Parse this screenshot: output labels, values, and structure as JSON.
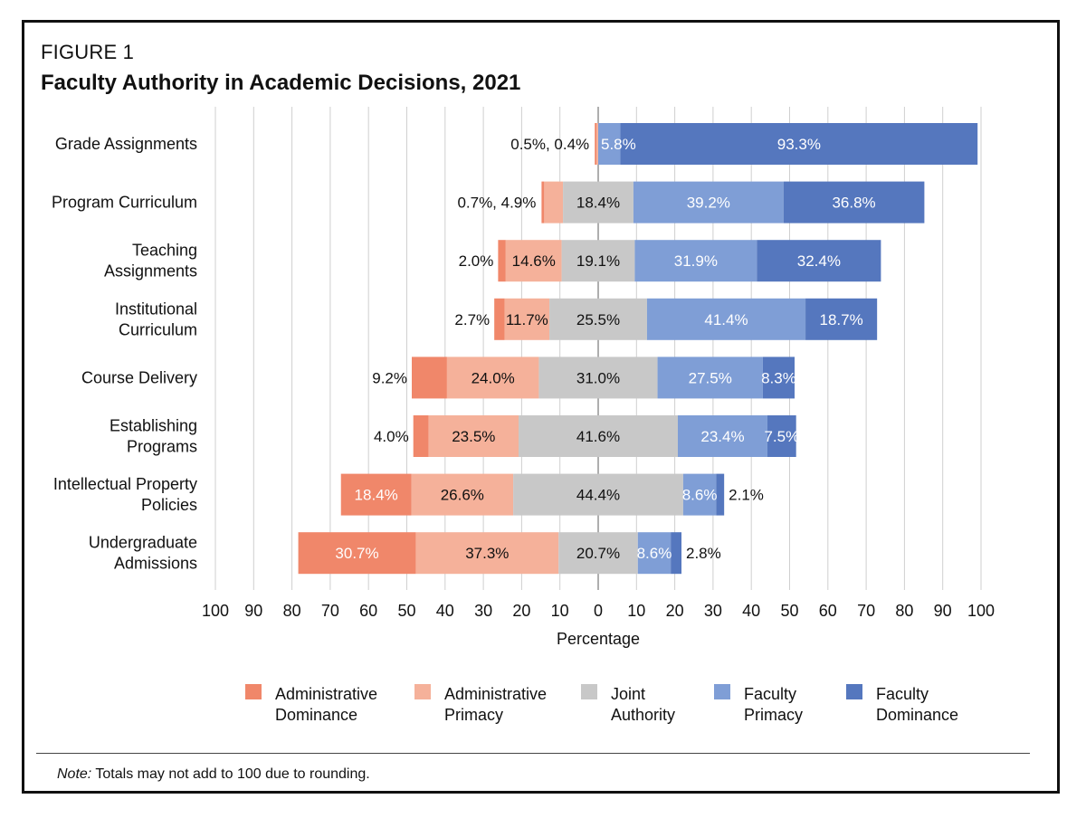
{
  "figure_label": "FIGURE 1",
  "title": "Faculty Authority in Academic Decisions, 2021",
  "note": {
    "prefix": "Note:",
    "text": " Totals may not add to 100 due to rounding."
  },
  "colors": {
    "admin_dominance": "#f0876a",
    "admin_primacy": "#f5b19a",
    "joint_authority": "#c8c8c8",
    "faculty_primacy": "#7f9ed6",
    "faculty_dominance": "#5577be"
  },
  "chart_data": {
    "type": "bar",
    "orientation": "horizontal",
    "stacked": "diverging",
    "title": "Faculty Authority in Academic Decisions, 2021",
    "xlabel": "Percentage",
    "xlim": [
      -100,
      100
    ],
    "xtick_labels": [
      "100",
      "90",
      "80",
      "70",
      "60",
      "50",
      "40",
      "30",
      "20",
      "10",
      "0",
      "10",
      "20",
      "30",
      "40",
      "50",
      "60",
      "70",
      "80",
      "90",
      "100"
    ],
    "grid": "vertical",
    "legend_position": "bottom",
    "categories": [
      [
        "Grade Assignments"
      ],
      [
        "Program Curriculum"
      ],
      [
        "Teaching",
        "Assignments"
      ],
      [
        "Institutional",
        "Curriculum"
      ],
      [
        "Course Delivery"
      ],
      [
        "Establishing",
        "Programs"
      ],
      [
        "Intellectual Property",
        "Policies"
      ],
      [
        "Undergraduate",
        "Admissions"
      ]
    ],
    "series": [
      {
        "name": "Administrative Dominance",
        "legend_lines": [
          "Administrative",
          "Dominance"
        ],
        "color_key": "admin_dominance",
        "values": [
          0.5,
          0.7,
          2.0,
          2.7,
          9.2,
          4.0,
          18.4,
          30.7
        ]
      },
      {
        "name": "Administrative Primacy",
        "legend_lines": [
          "Administrative",
          "Primacy"
        ],
        "color_key": "admin_primacy",
        "values": [
          0.4,
          4.9,
          14.6,
          11.7,
          24.0,
          23.5,
          26.6,
          37.3
        ]
      },
      {
        "name": "Joint Authority",
        "legend_lines": [
          "Joint",
          "Authority"
        ],
        "color_key": "joint_authority",
        "values": [
          0,
          18.4,
          19.1,
          25.5,
          31.0,
          41.6,
          44.4,
          20.7
        ]
      },
      {
        "name": "Faculty Primacy",
        "legend_lines": [
          "Faculty",
          "Primacy"
        ],
        "color_key": "faculty_primacy",
        "values": [
          5.8,
          39.2,
          31.9,
          41.4,
          27.5,
          23.4,
          8.6,
          8.6
        ]
      },
      {
        "name": "Faculty Dominance",
        "legend_lines": [
          "Faculty",
          "Dominance"
        ],
        "color_key": "faculty_dominance",
        "values": [
          93.3,
          36.8,
          32.4,
          18.7,
          8.3,
          7.5,
          2.1,
          2.8
        ]
      }
    ],
    "data_labels": [
      [
        "0.5%, 0.4%",
        "5.8%",
        "93.3%"
      ],
      [
        "0.7%, 4.9%",
        "18.4%",
        "39.2%",
        "36.8%"
      ],
      [
        "2.0%",
        "14.6%",
        "19.1%",
        "31.9%",
        "32.4%"
      ],
      [
        "2.7%",
        "11.7%",
        "25.5%",
        "41.4%",
        "18.7%"
      ],
      [
        "9.2%",
        "24.0%",
        "31.0%",
        "27.5%",
        "8.3%"
      ],
      [
        "4.0%",
        "23.5%",
        "41.6%",
        "23.4%",
        "7.5%"
      ],
      [
        "18.4%",
        "26.6%",
        "44.4%",
        "8.6%",
        "2.1%"
      ],
      [
        "30.7%",
        "37.3%",
        "20.7%",
        "8.6%",
        "2.8%"
      ]
    ]
  }
}
